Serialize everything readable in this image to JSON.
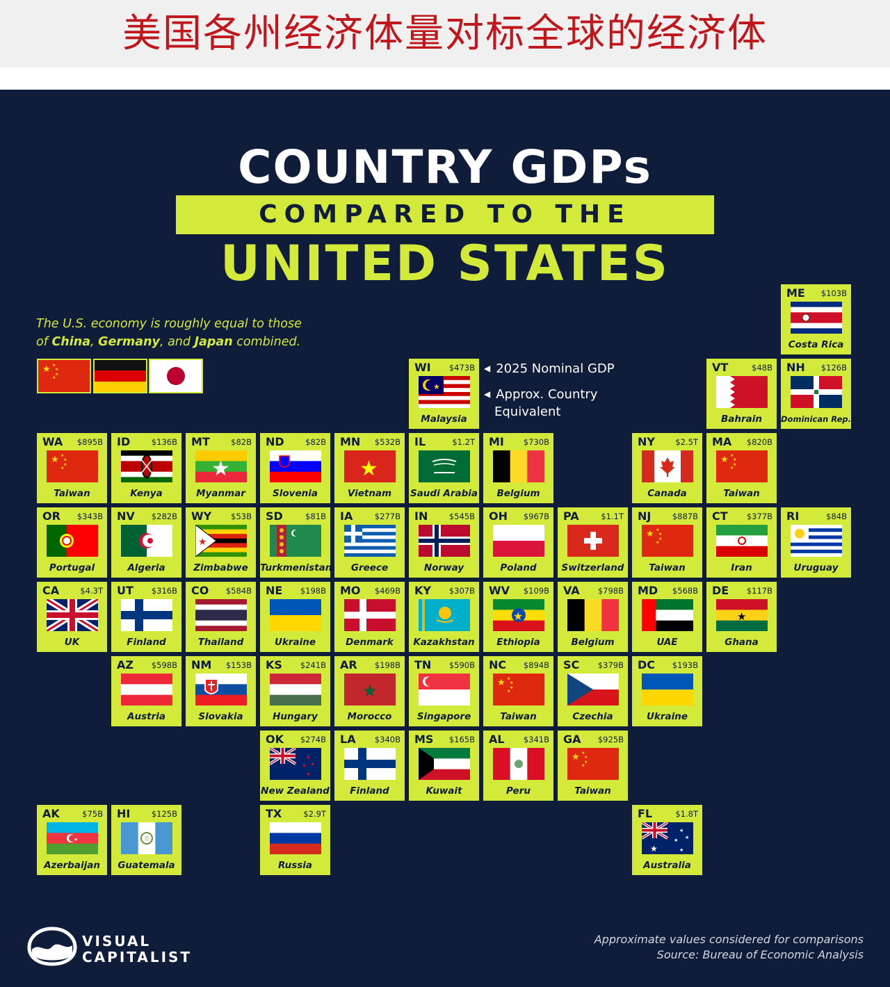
{
  "banner_title": "美国各州经济体量对标全球的经济体",
  "title_line1": "COUNTRY GDPs",
  "title_line2": "COMPARED TO THE",
  "title_line3": "UNITED STATES",
  "intro": {
    "line1": "The U.S. economy is roughly equal to those",
    "of": "of ",
    "c1": "China",
    "sep1": ", ",
    "c2": "Germany",
    "sep2": ", and ",
    "c3": "Japan",
    "tail": " combined."
  },
  "intro_flags": [
    "China",
    "Germany",
    "Japan"
  ],
  "legend": {
    "gdp": "2025 Nominal GDP",
    "country_line1": "Approx. Country",
    "country_line2": "Equivalent"
  },
  "colors": {
    "background": "#0f1d3a",
    "accent": "#d4ea3b",
    "banner_text": "#c0171c"
  },
  "states": [
    {
      "abbr": "ME",
      "gdp": "$103B",
      "country": "Costa Rica",
      "flag": "costa_rica"
    },
    {
      "abbr": "WI",
      "gdp": "$473B",
      "country": "Malaysia",
      "flag": "malaysia"
    },
    {
      "abbr": "VT",
      "gdp": "$48B",
      "country": "Bahrain",
      "flag": "bahrain"
    },
    {
      "abbr": "NH",
      "gdp": "$126B",
      "country": "Dominican Rep.",
      "flag": "dominican"
    },
    {
      "abbr": "WA",
      "gdp": "$895B",
      "country": "Taiwan",
      "flag": "china"
    },
    {
      "abbr": "ID",
      "gdp": "$136B",
      "country": "Kenya",
      "flag": "kenya"
    },
    {
      "abbr": "MT",
      "gdp": "$82B",
      "country": "Myanmar",
      "flag": "myanmar"
    },
    {
      "abbr": "ND",
      "gdp": "$82B",
      "country": "Slovenia",
      "flag": "slovenia"
    },
    {
      "abbr": "MN",
      "gdp": "$532B",
      "country": "Vietnam",
      "flag": "vietnam"
    },
    {
      "abbr": "IL",
      "gdp": "$1.2T",
      "country": "Saudi Arabia",
      "flag": "saudi"
    },
    {
      "abbr": "MI",
      "gdp": "$730B",
      "country": "Belgium",
      "flag": "belgium"
    },
    {
      "abbr": "NY",
      "gdp": "$2.5T",
      "country": "Canada",
      "flag": "canada"
    },
    {
      "abbr": "MA",
      "gdp": "$820B",
      "country": "Taiwan",
      "flag": "china"
    },
    {
      "abbr": "OR",
      "gdp": "$343B",
      "country": "Portugal",
      "flag": "portugal"
    },
    {
      "abbr": "NV",
      "gdp": "$282B",
      "country": "Algeria",
      "flag": "algeria"
    },
    {
      "abbr": "WY",
      "gdp": "$53B",
      "country": "Zimbabwe",
      "flag": "zimbabwe"
    },
    {
      "abbr": "SD",
      "gdp": "$81B",
      "country": "Turkmenistan",
      "flag": "turkmenistan"
    },
    {
      "abbr": "IA",
      "gdp": "$277B",
      "country": "Greece",
      "flag": "greece"
    },
    {
      "abbr": "IN",
      "gdp": "$545B",
      "country": "Norway",
      "flag": "norway"
    },
    {
      "abbr": "OH",
      "gdp": "$967B",
      "country": "Poland",
      "flag": "poland"
    },
    {
      "abbr": "PA",
      "gdp": "$1.1T",
      "country": "Switzerland",
      "flag": "switzerland"
    },
    {
      "abbr": "NJ",
      "gdp": "$887B",
      "country": "Taiwan",
      "flag": "china"
    },
    {
      "abbr": "CT",
      "gdp": "$377B",
      "country": "Iran",
      "flag": "iran"
    },
    {
      "abbr": "RI",
      "gdp": "$84B",
      "country": "Uruguay",
      "flag": "uruguay"
    },
    {
      "abbr": "CA",
      "gdp": "$4.3T",
      "country": "UK",
      "flag": "uk"
    },
    {
      "abbr": "UT",
      "gdp": "$316B",
      "country": "Finland",
      "flag": "finland"
    },
    {
      "abbr": "CO",
      "gdp": "$584B",
      "country": "Thailand",
      "flag": "thailand"
    },
    {
      "abbr": "NE",
      "gdp": "$198B",
      "country": "Ukraine",
      "flag": "ukraine"
    },
    {
      "abbr": "MO",
      "gdp": "$469B",
      "country": "Denmark",
      "flag": "denmark"
    },
    {
      "abbr": "KY",
      "gdp": "$307B",
      "country": "Kazakhstan",
      "flag": "kazakhstan"
    },
    {
      "abbr": "WV",
      "gdp": "$109B",
      "country": "Ethiopia",
      "flag": "ethiopia"
    },
    {
      "abbr": "VA",
      "gdp": "$798B",
      "country": "Belgium",
      "flag": "belgium"
    },
    {
      "abbr": "MD",
      "gdp": "$568B",
      "country": "UAE",
      "flag": "uae"
    },
    {
      "abbr": "DE",
      "gdp": "$117B",
      "country": "Ghana",
      "flag": "ghana"
    },
    {
      "abbr": "AZ",
      "gdp": "$598B",
      "country": "Austria",
      "flag": "austria"
    },
    {
      "abbr": "NM",
      "gdp": "$153B",
      "country": "Slovakia",
      "flag": "slovakia"
    },
    {
      "abbr": "KS",
      "gdp": "$241B",
      "country": "Hungary",
      "flag": "hungary"
    },
    {
      "abbr": "AR",
      "gdp": "$198B",
      "country": "Morocco",
      "flag": "morocco"
    },
    {
      "abbr": "TN",
      "gdp": "$590B",
      "country": "Singapore",
      "flag": "singapore"
    },
    {
      "abbr": "NC",
      "gdp": "$894B",
      "country": "Taiwan",
      "flag": "china"
    },
    {
      "abbr": "SC",
      "gdp": "$379B",
      "country": "Czechia",
      "flag": "czechia"
    },
    {
      "abbr": "DC",
      "gdp": "$193B",
      "country": "Ukraine",
      "flag": "ukraine"
    },
    {
      "abbr": "OK",
      "gdp": "$274B",
      "country": "New Zealand",
      "flag": "new_zealand"
    },
    {
      "abbr": "LA",
      "gdp": "$340B",
      "country": "Finland",
      "flag": "finland"
    },
    {
      "abbr": "MS",
      "gdp": "$165B",
      "country": "Kuwait",
      "flag": "kuwait"
    },
    {
      "abbr": "AL",
      "gdp": "$341B",
      "country": "Peru",
      "flag": "peru"
    },
    {
      "abbr": "GA",
      "gdp": "$925B",
      "country": "Taiwan",
      "flag": "china"
    },
    {
      "abbr": "AK",
      "gdp": "$75B",
      "country": "Azerbaijan",
      "flag": "azerbaijan"
    },
    {
      "abbr": "HI",
      "gdp": "$125B",
      "country": "Guatemala",
      "flag": "guatemala"
    },
    {
      "abbr": "TX",
      "gdp": "$2.9T",
      "country": "Russia",
      "flag": "russia"
    },
    {
      "abbr": "FL",
      "gdp": "$1.8T",
      "country": "Australia",
      "flag": "australia"
    }
  ],
  "footnote_line1": "Approximate values considered for comparisons",
  "footnote_line2": "Source: Bureau of Economic Analysis",
  "brand_line1": "VISUAL",
  "brand_line2": "CAPITALIST"
}
